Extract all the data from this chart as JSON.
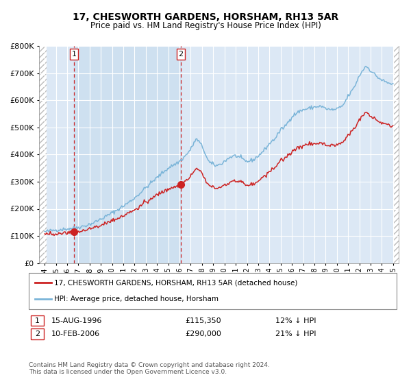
{
  "title": "17, CHESWORTH GARDENS, HORSHAM, RH13 5AR",
  "subtitle": "Price paid vs. HM Land Registry's House Price Index (HPI)",
  "legend_line1": "17, CHESWORTH GARDENS, HORSHAM, RH13 5AR (detached house)",
  "legend_line2": "HPI: Average price, detached house, Horsham",
  "sale1_date": "15-AUG-1996",
  "sale1_price": 115350,
  "sale1_label": "1",
  "sale1_note": "12% ↓ HPI",
  "sale2_date": "10-FEB-2006",
  "sale2_price": 290000,
  "sale2_label": "2",
  "sale2_note": "21% ↓ HPI",
  "footnote": "Contains HM Land Registry data © Crown copyright and database right 2024.\nThis data is licensed under the Open Government Licence v3.0.",
  "hpi_color": "#7ab4d8",
  "price_color": "#cc2222",
  "ylim": [
    0,
    800000
  ],
  "yticks": [
    0,
    100000,
    200000,
    300000,
    400000,
    500000,
    600000,
    700000,
    800000
  ],
  "xlabel_start_year": 1994,
  "xlabel_end_year": 2025,
  "sale1_x": 1996.62,
  "sale2_x": 2006.11,
  "xmin": 1993.5,
  "xmax": 2025.5
}
